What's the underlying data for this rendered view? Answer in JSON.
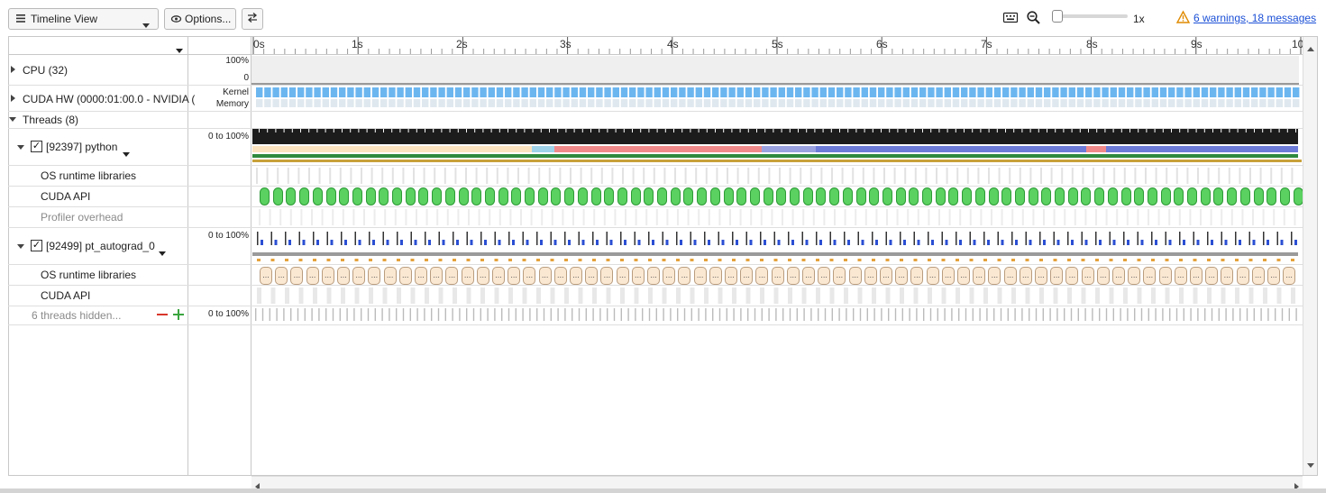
{
  "toolbar": {
    "view_select": "Timeline View",
    "options_label": "Options...",
    "zoom_level": "1x",
    "warnings_link": "6 warnings, 18 messages"
  },
  "timeline": {
    "ticks": [
      "0s",
      "1s",
      "2s",
      "3s",
      "4s",
      "5s",
      "6s",
      "7s",
      "8s",
      "9s",
      "10"
    ]
  },
  "rows": {
    "cpu": {
      "label": "CPU (32)",
      "scale_top": "100%",
      "scale_bottom": "0"
    },
    "cuda_hw": {
      "label": "CUDA HW (0000:01:00.0 - NVIDIA (",
      "scale_top": "Kernel",
      "scale_bottom": "Memory"
    },
    "threads": {
      "label": "Threads (8)"
    },
    "python": {
      "label": "[92397] python",
      "scale": "0 to 100%",
      "checked": "✓"
    },
    "python_os": {
      "label": "OS runtime libraries"
    },
    "python_cuda": {
      "label": "CUDA API"
    },
    "python_overhead": {
      "label": "Profiler overhead"
    },
    "autograd": {
      "label": "[92499] pt_autograd_0",
      "scale": "0 to 100%",
      "checked": "✓"
    },
    "autograd_os": {
      "label": "OS runtime libraries",
      "pill_text": "..."
    },
    "autograd_cuda": {
      "label": "CUDA API"
    },
    "hidden": {
      "label": "6 threads hidden...",
      "scale": "0 to 100%"
    }
  },
  "colors": {
    "kernel_blue": "#6cb6f0",
    "cuda_green": "#5ad160",
    "os_tan": "#fbe8d2",
    "thread_dark": "#1c1c1c",
    "warning": "#e08a00",
    "link": "#1a4fd6"
  }
}
